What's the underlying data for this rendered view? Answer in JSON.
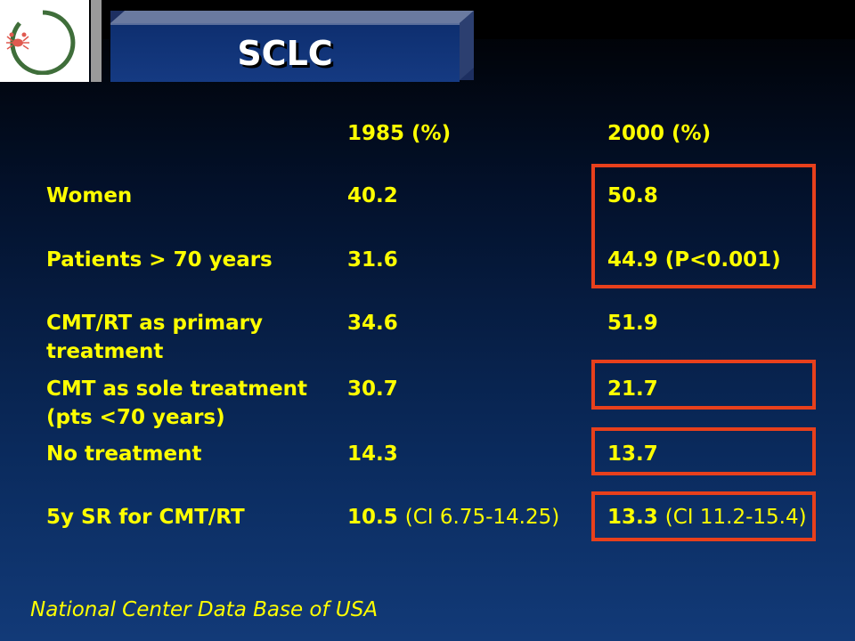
{
  "title": "SCLC",
  "logo": {
    "icon": "crab-circle-logo"
  },
  "headers": {
    "col1": "1985 (%)",
    "col2": "2000 (%)"
  },
  "rows": [
    {
      "label": "Women",
      "v1": "40.2",
      "v2": "50.8"
    },
    {
      "label": "Patients > 70 years",
      "v1": "31.6",
      "v2": "44.9 (P<0.001)"
    },
    {
      "label_line1": "CMT/RT as primary",
      "label_line2": "treatment",
      "v1": "34.6",
      "v2": "51.9"
    },
    {
      "label_line1": "CMT as sole treatment",
      "label_line2": "(pts <70 years)",
      "v1": "30.7",
      "v2": "21.7"
    },
    {
      "label": "No treatment",
      "v1": "14.3",
      "v2": "13.7"
    },
    {
      "label": "5y SR for CMT/RT",
      "v1_main": "10.5",
      "v1_ci": "(CI 6.75-14.25)",
      "v2_main": "13.3",
      "v2_ci": "(CI 11.2-15.4)"
    }
  ],
  "source": "National Center Data Base of USA",
  "colors": {
    "text": "#ffff00",
    "highlight": "#e8401c",
    "title": "#ffffff"
  }
}
